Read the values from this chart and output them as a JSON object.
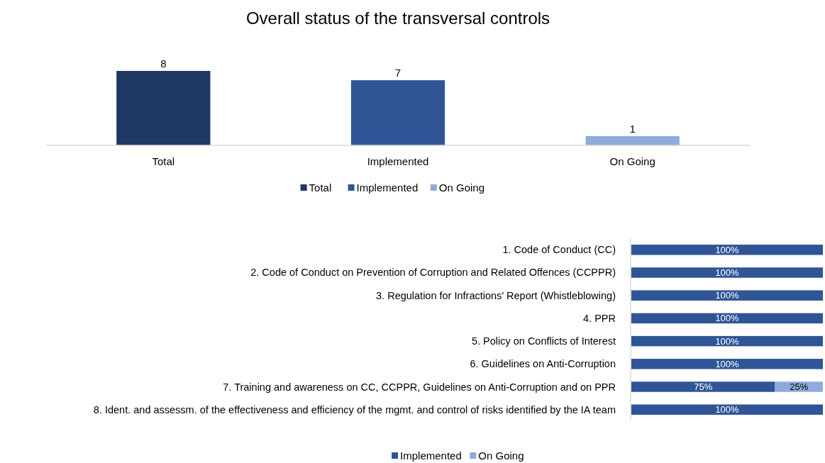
{
  "chart_data": [
    {
      "type": "bar",
      "title": "Overall status of the transversal controls",
      "categories": [
        "Total",
        "Implemented",
        "On Going"
      ],
      "series": [
        {
          "name": "Total",
          "color": "#203864",
          "values": [
            8,
            null,
            null
          ]
        },
        {
          "name": "Implemented",
          "color": "#2f5597",
          "values": [
            null,
            7,
            null
          ]
        },
        {
          "name": "On Going",
          "color": "#8faadc",
          "values": [
            null,
            null,
            1
          ]
        }
      ],
      "data_labels": true,
      "legend": "bottom"
    },
    {
      "type": "bar",
      "orientation": "horizontal",
      "stacked": true,
      "categories": [
        "1. Code of Conduct (CC)",
        "2. Code of Conduct on Prevention of Corruption and Related Offences (CCPPR)",
        "3. Regulation for Infractions’ Report (Whistleblowing)",
        "4. PPR",
        "5. Policy on Conflicts of Interest",
        "6. Guidelines on Anti-Corruption",
        "7. Training and awareness on CC, CCPPR, Guidelines on Anti-Corruption and on PPR",
        "8. Ident. and assessm. of the effectiveness and efficiency of the mgmt. and control of risks identified by the IA team"
      ],
      "series": [
        {
          "name": "Implemented",
          "color": "#2f5597",
          "values": [
            100,
            100,
            100,
            100,
            100,
            100,
            75,
            100
          ],
          "value_labels": [
            "100%",
            "100%",
            "100%",
            "100%",
            "100%",
            "100%",
            "75%",
            "100%"
          ]
        },
        {
          "name": "On Going",
          "color": "#8faadc",
          "values": [
            0,
            0,
            0,
            0,
            0,
            0,
            25,
            0
          ],
          "value_labels": [
            null,
            null,
            null,
            null,
            null,
            null,
            "25%",
            null
          ]
        }
      ],
      "legend": "bottom"
    }
  ]
}
